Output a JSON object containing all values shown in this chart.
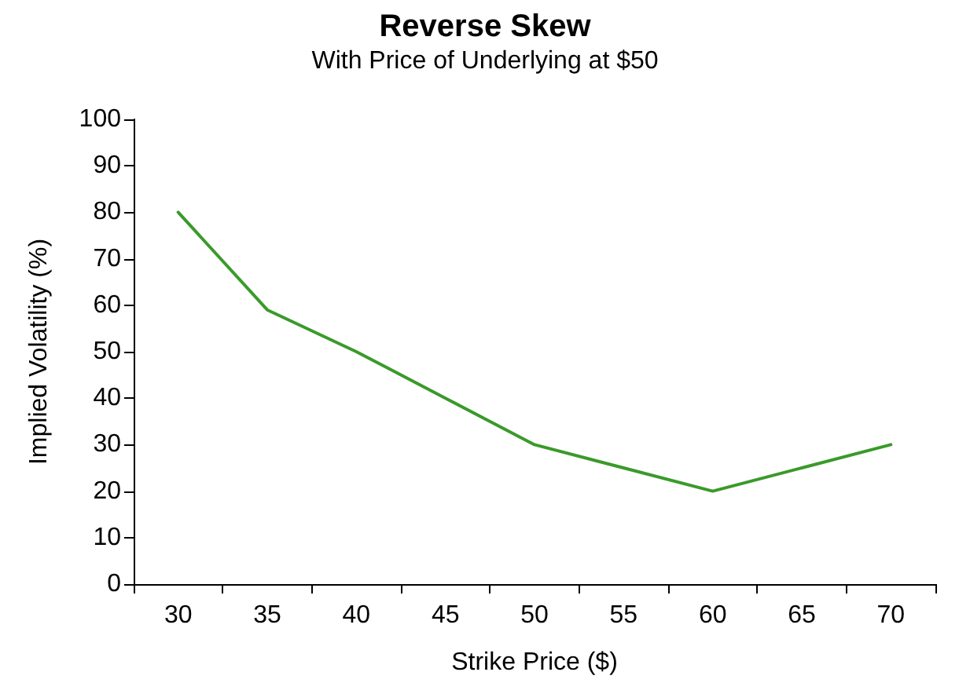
{
  "chart_data": {
    "type": "line",
    "title": "Reverse Skew",
    "subtitle": "With Price of Underlying at $50",
    "xlabel": "Strike Price ($)",
    "ylabel": "Implied Volatility (%)",
    "categories": [
      "30",
      "35",
      "40",
      "45",
      "50",
      "55",
      "60",
      "65",
      "70"
    ],
    "series": [
      {
        "color": "#3a9a2a",
        "values": [
          80,
          59,
          50,
          40,
          30,
          25,
          20,
          25,
          30
        ]
      }
    ],
    "ylim": [
      0,
      100
    ],
    "yticks": [
      0,
      10,
      20,
      30,
      40,
      50,
      60,
      70,
      80,
      90,
      100
    ],
    "marker": "none",
    "line_style": "solid"
  }
}
